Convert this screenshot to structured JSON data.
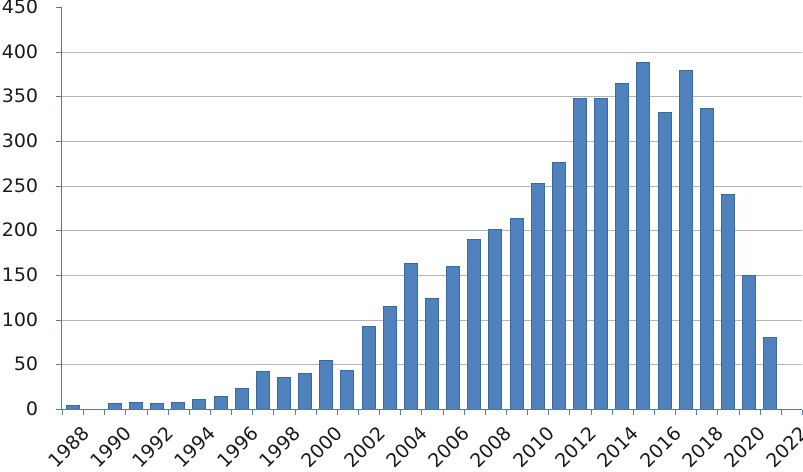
{
  "chart_data": {
    "type": "bar",
    "title": "",
    "xlabel": "",
    "ylabel": "",
    "categories": [
      "1988",
      "1989",
      "1990",
      "1991",
      "1992",
      "1993",
      "1994",
      "1995",
      "1996",
      "1997",
      "1998",
      "1999",
      "2000",
      "2001",
      "2002",
      "2003",
      "2004",
      "2005",
      "2006",
      "2007",
      "2008",
      "2009",
      "2010",
      "2011",
      "2012",
      "2013",
      "2014",
      "2015",
      "2016",
      "2017",
      "2018",
      "2019",
      "2020",
      "2021",
      "2022"
    ],
    "values": [
      4,
      0,
      7,
      8,
      7,
      8,
      11,
      15,
      23,
      43,
      36,
      40,
      55,
      44,
      93,
      115,
      163,
      124,
      160,
      190,
      201,
      214,
      253,
      276,
      348,
      348,
      365,
      388,
      332,
      379,
      337,
      241,
      150,
      81,
      0
    ],
    "ylim": [
      0,
      450
    ],
    "ytick_step": 50,
    "ytick_labels": [
      "0",
      "50",
      "100",
      "150",
      "200",
      "250",
      "300",
      "350",
      "400",
      "450"
    ],
    "xtick_label_interval": 2,
    "grid": true,
    "legend_position": "none",
    "colors": {
      "bar_fill": "#4f81bd",
      "bar_border": "#3b6aa0",
      "gridline": "#b5b5b5",
      "axis_line": "#5d7599",
      "tick": "#4f81bd",
      "label_text": "#1a1a1a"
    }
  }
}
